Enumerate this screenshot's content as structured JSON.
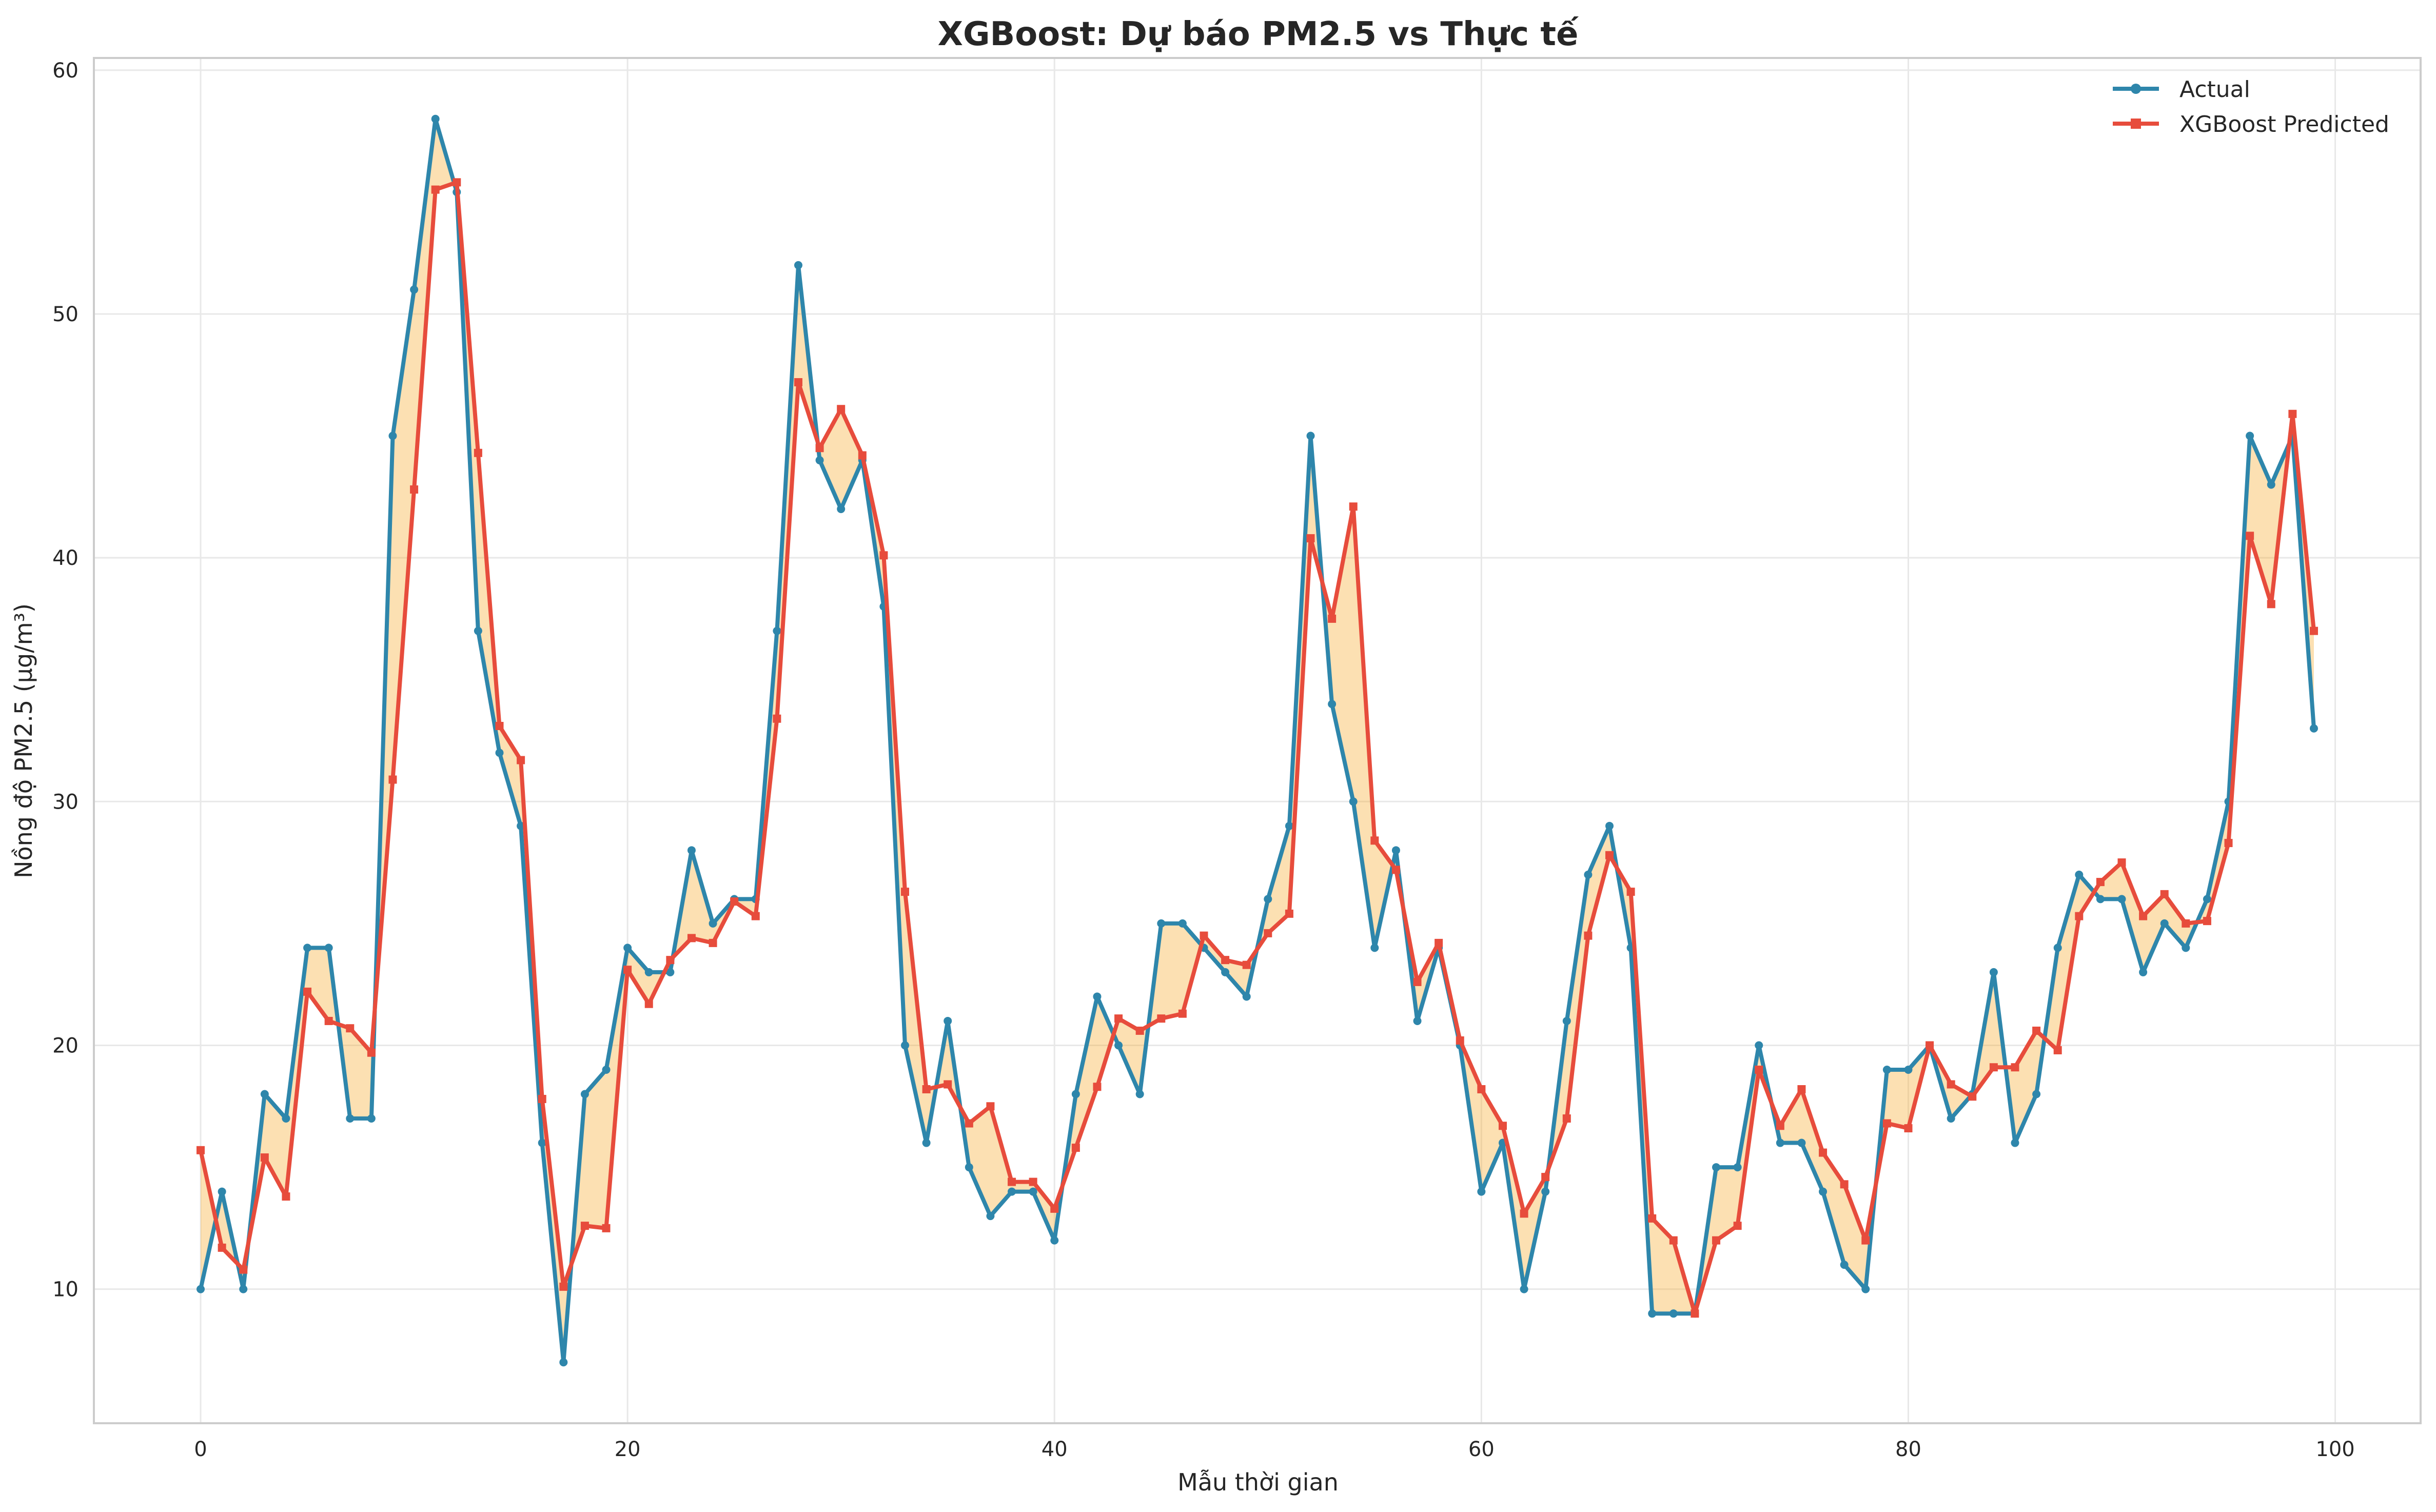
{
  "chart_data": {
    "type": "line",
    "title": "XGBoost: Dự báo PM2.5 vs Thực tế",
    "xlabel": "Mẫu thời gian",
    "ylabel": "Nồng độ PM2.5 (µg/m³)",
    "xlim": [
      -5,
      104
    ],
    "ylim": [
      4.5,
      60.5
    ],
    "xticks": [
      0,
      20,
      40,
      60,
      80,
      100
    ],
    "yticks": [
      10,
      20,
      30,
      40,
      50,
      60
    ],
    "grid": true,
    "legend_position": "top-right",
    "fill_between": {
      "color": "#f5a623",
      "opacity": 0.35
    },
    "series": [
      {
        "name": "Actual",
        "color": "#2e86ab",
        "marker": "circle",
        "values": [
          10,
          14,
          10,
          18,
          17,
          24,
          24,
          17,
          17,
          45,
          51,
          58,
          55,
          37,
          32,
          29,
          16,
          7,
          18,
          19,
          24,
          23,
          23,
          28,
          25,
          26,
          26,
          37,
          52,
          44,
          42,
          44,
          38,
          20,
          16,
          21,
          15,
          13,
          14,
          14,
          12,
          18,
          22,
          20,
          18,
          25,
          25,
          24,
          23,
          22,
          26,
          29,
          45,
          34,
          30,
          24,
          28,
          21,
          24,
          20,
          14,
          16,
          10,
          14,
          21,
          27,
          29,
          24,
          9,
          9,
          9,
          15,
          15,
          20,
          16,
          16,
          14,
          11,
          10,
          19,
          19,
          20,
          17,
          18,
          23,
          16,
          18,
          24,
          27,
          26,
          26,
          23,
          25,
          24,
          26,
          30,
          45,
          43,
          45,
          33
        ]
      },
      {
        "name": "XGBoost Predicted",
        "color": "#e74c3c",
        "marker": "square",
        "values": [
          15.7,
          11.7,
          10.8,
          15.4,
          13.8,
          22.2,
          21.0,
          20.7,
          19.7,
          30.9,
          42.8,
          55.1,
          55.4,
          44.3,
          33.1,
          31.7,
          17.8,
          10.1,
          12.6,
          12.5,
          23.1,
          21.7,
          23.5,
          24.4,
          24.2,
          25.9,
          25.3,
          33.4,
          47.2,
          44.5,
          46.1,
          44.2,
          40.1,
          26.3,
          18.2,
          18.4,
          16.8,
          17.5,
          14.4,
          14.4,
          13.3,
          15.8,
          18.3,
          21.1,
          20.6,
          21.1,
          21.3,
          24.5,
          23.5,
          23.3,
          24.6,
          25.4,
          40.8,
          37.5,
          42.1,
          28.4,
          27.2,
          22.6,
          24.2,
          20.2,
          18.2,
          16.7,
          13.1,
          14.6,
          17.0,
          24.5,
          27.8,
          26.3,
          12.9,
          12.0,
          9.0,
          12.0,
          12.6,
          19.0,
          16.7,
          18.2,
          15.6,
          14.3,
          12.0,
          16.8,
          16.6,
          20.0,
          18.4,
          17.9,
          19.1,
          19.1,
          20.6,
          19.8,
          25.3,
          26.7,
          27.5,
          25.3,
          26.2,
          25.0,
          25.1,
          28.3,
          40.9,
          38.1,
          45.9,
          37.0
        ]
      }
    ]
  }
}
